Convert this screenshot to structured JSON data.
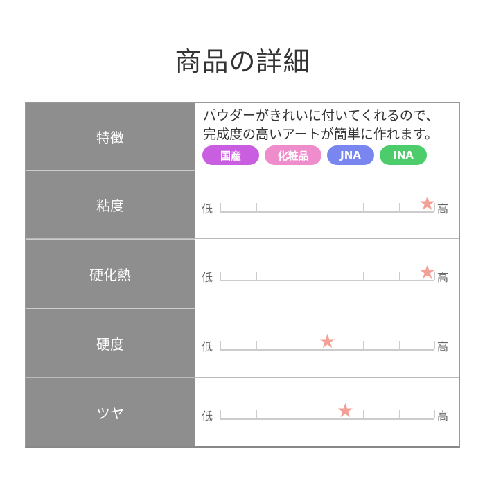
{
  "title": "商品の詳細",
  "feature": {
    "label": "特徴",
    "description": [
      "パウダーがきれいに付いてくれるので、",
      "完成度の高いアートが簡単に作れます。"
    ],
    "tags": [
      {
        "text": "国産",
        "color": "#c95ee0"
      },
      {
        "text": "化粧品",
        "color": "#ef8ccb"
      },
      {
        "text": "JNA",
        "color": "#7a86ef"
      },
      {
        "text": "INA",
        "color": "#4ccc6a"
      }
    ]
  },
  "scale_low": "低",
  "scale_high": "高",
  "scale_max": 6,
  "star_color": "#f4a096",
  "ratings": [
    {
      "label": "粘度",
      "value": 5.8
    },
    {
      "label": "硬化熱",
      "value": 5.8
    },
    {
      "label": "硬度",
      "value": 3
    },
    {
      "label": "ツヤ",
      "value": 3.5
    }
  ]
}
